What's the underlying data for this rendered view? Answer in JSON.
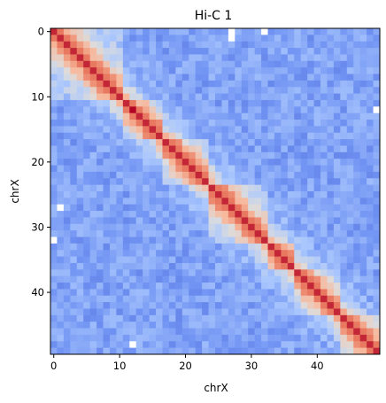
{
  "chart_data": {
    "type": "heatmap",
    "title": "Hi-C 1",
    "xlabel": "chrX",
    "ylabel": "chrX",
    "size": 50,
    "xticks": [
      0,
      10,
      20,
      30,
      40
    ],
    "yticks": [
      0,
      10,
      20,
      30,
      40
    ],
    "colormap": "coolwarm",
    "colormap_stops": [
      "#3b4cc0",
      "#7093f3",
      "#aac7fd",
      "#dddddd",
      "#f7b89c",
      "#e7745b",
      "#b40426"
    ],
    "diagonal_value": 0.95,
    "tad_boundaries": [
      0,
      11,
      17,
      24,
      33,
      37,
      44,
      50
    ],
    "tad_strength": 0.55,
    "background_level": 0.22,
    "missing_cells": [
      [
        0,
        27
      ],
      [
        0,
        32
      ],
      [
        1,
        27
      ],
      [
        12,
        49
      ],
      [
        27,
        1
      ],
      [
        32,
        0
      ],
      [
        48,
        12
      ]
    ],
    "missing_color": "#ffffff",
    "grid": false
  }
}
